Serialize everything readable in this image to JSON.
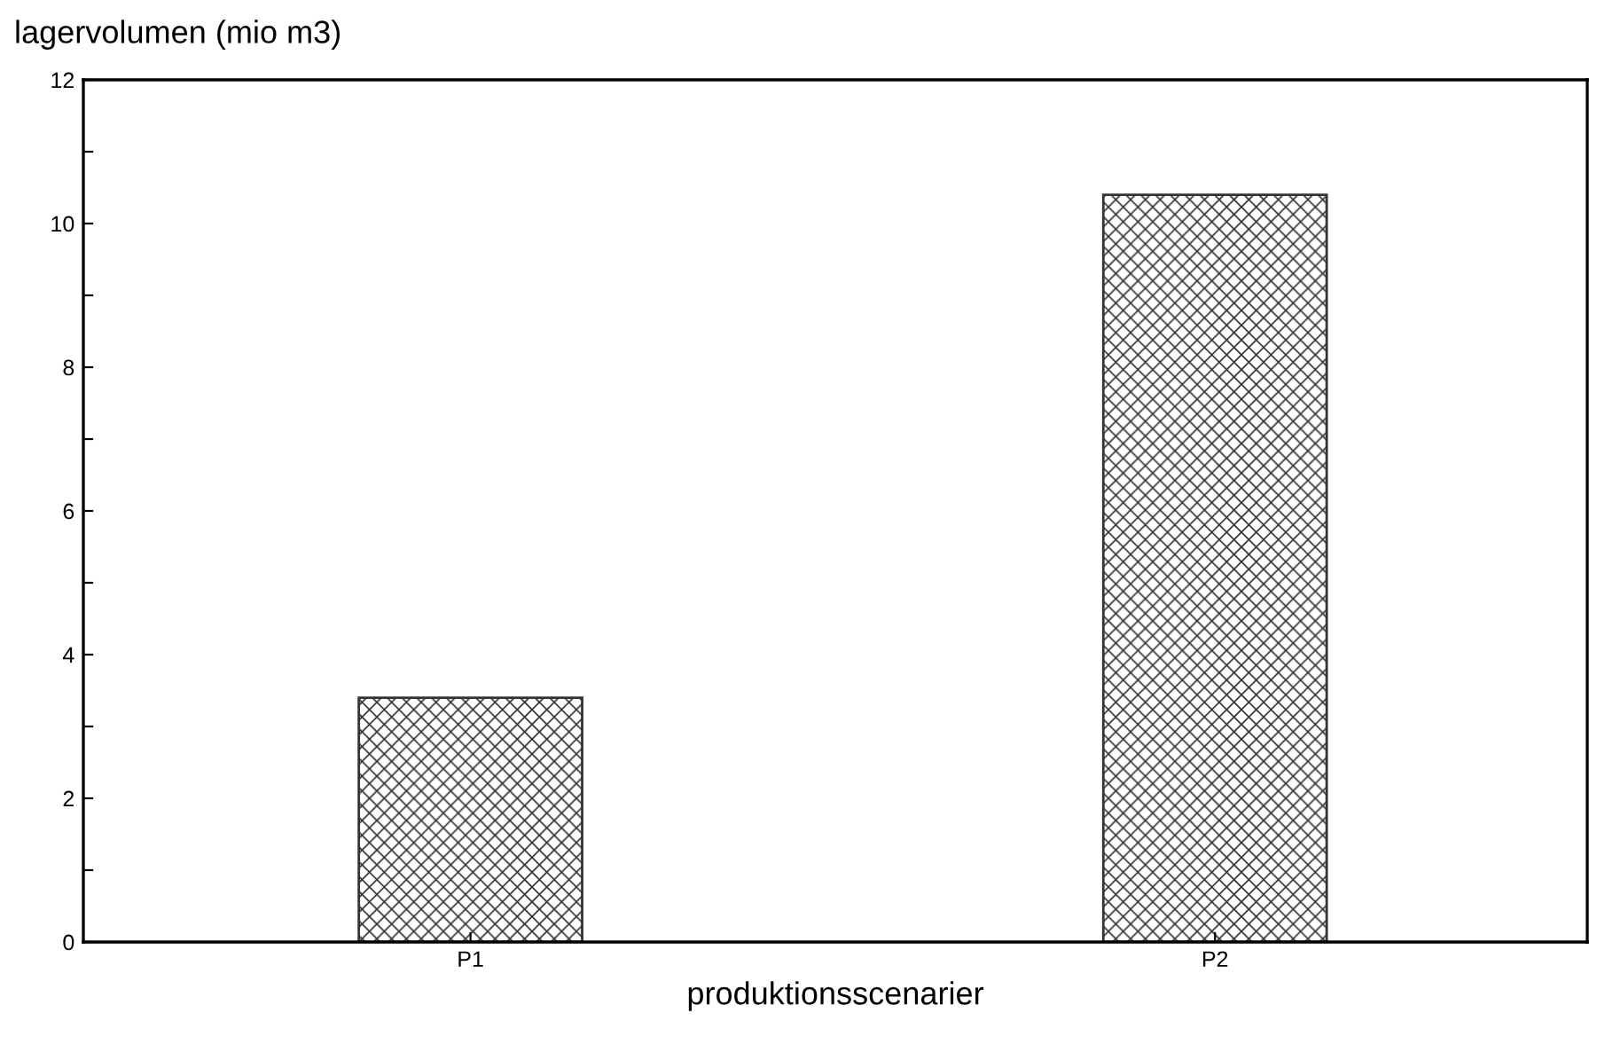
{
  "chart_data": {
    "type": "bar",
    "ylabel": "lagervolumen (mio m3)",
    "xlabel": "produktionsscenarier",
    "categories": [
      "P1",
      "P2"
    ],
    "values": [
      3.4,
      10.4
    ],
    "color": "#333333",
    "ylim": [
      0,
      12
    ],
    "yticks": [
      0,
      {
        "value": 1,
        "label": null
      },
      2,
      {
        "value": 3,
        "label": null
      },
      4,
      {
        "value": 5,
        "label": null
      },
      6,
      {
        "value": 7,
        "label": null
      },
      8,
      {
        "value": 9,
        "label": null
      },
      10,
      {
        "value": 11,
        "label": null
      },
      12
    ],
    "grid": false,
    "legend": false
  }
}
